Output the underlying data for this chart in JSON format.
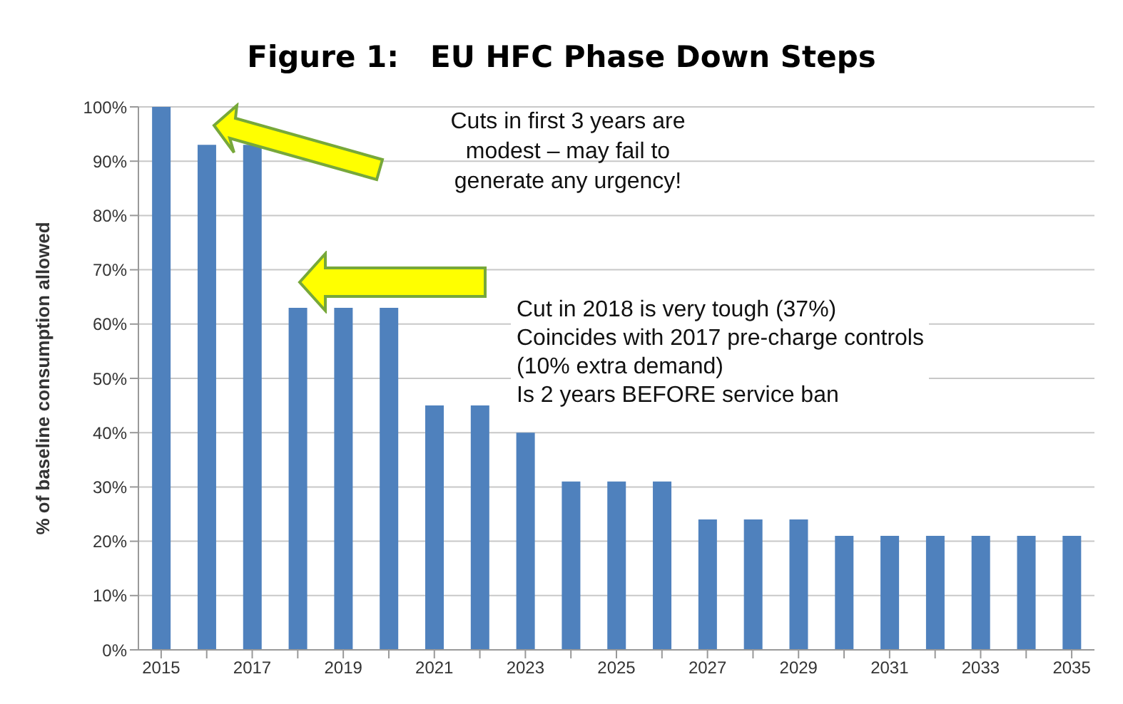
{
  "chart_data": {
    "type": "bar",
    "title": "Figure 1:   EU HFC Phase Down Steps",
    "ylabel": "% of baseline consumption allowed",
    "categories": [
      "2015",
      null,
      "2017",
      null,
      "2019",
      null,
      "2021",
      null,
      "2023",
      null,
      "2025",
      null,
      "2027",
      null,
      "2029",
      null,
      "2031",
      null,
      "2033",
      null,
      "2035"
    ],
    "values": [
      100,
      93,
      93,
      63,
      63,
      63,
      45,
      45,
      40,
      31,
      31,
      31,
      24,
      24,
      24,
      21,
      21,
      21,
      21,
      21,
      21
    ],
    "color": "#4f81bd",
    "ylim": [
      0,
      100
    ],
    "yticks": [
      {
        "value": 0,
        "label": "0%"
      },
      {
        "value": 10,
        "label": "10%"
      },
      {
        "value": 20,
        "label": "20%"
      },
      {
        "value": 30,
        "label": "30%"
      },
      {
        "value": 40,
        "label": "40%"
      },
      {
        "value": 50,
        "label": "50%"
      },
      {
        "value": 60,
        "label": "60%"
      },
      {
        "value": 70,
        "label": "70%"
      },
      {
        "value": 80,
        "label": "80%"
      },
      {
        "value": 90,
        "label": "90%"
      },
      {
        "value": 100,
        "label": "100%"
      }
    ],
    "grid": "y",
    "annotations": [
      "Cuts in first 3 years are\nmodest – may fail to\ngenerate any urgency!",
      "Cut in 2018 is very tough (37%)\nCoincides with 2017 pre-charge controls\n(10% extra demand)\nIs 2 years BEFORE service ban"
    ]
  }
}
